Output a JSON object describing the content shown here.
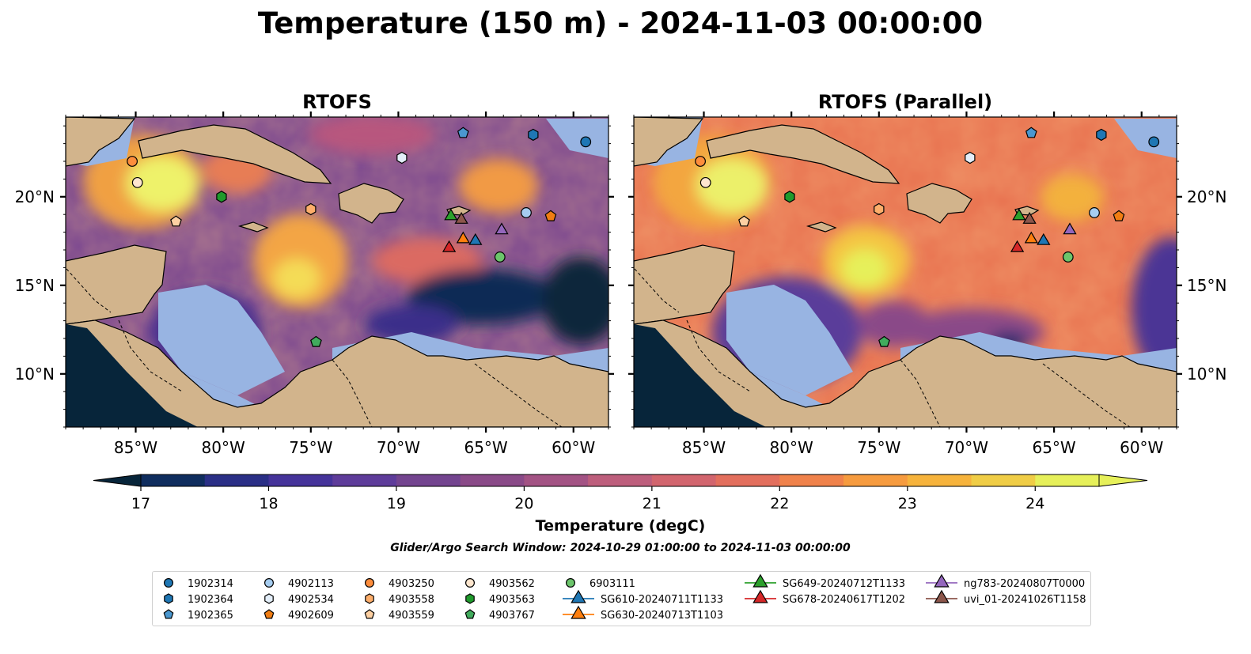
{
  "title": "Temperature (150 m) - 2024-11-03 00:00:00",
  "panels": [
    {
      "title": "RTOFS",
      "variant": "rtofs"
    },
    {
      "title": "RTOFS (Parallel)",
      "variant": "parallel"
    }
  ],
  "map": {
    "lon_range": [
      -89,
      -58
    ],
    "lat_range": [
      7,
      24.5
    ],
    "lon_ticks": [
      {
        "value": -85,
        "label": "85°W"
      },
      {
        "value": -80,
        "label": "80°W"
      },
      {
        "value": -75,
        "label": "75°W"
      },
      {
        "value": -70,
        "label": "70°W"
      },
      {
        "value": -65,
        "label": "65°W"
      },
      {
        "value": -60,
        "label": "60°W"
      }
    ],
    "lat_ticks": [
      {
        "value": 10,
        "label": "10°N"
      },
      {
        "value": 15,
        "label": "15°N"
      },
      {
        "value": 20,
        "label": "20°N"
      }
    ],
    "land_color": "#d2b48c",
    "shelf_color": "#98b4e2",
    "deep_color": "#07253a"
  },
  "colorbar": {
    "label": "Temperature (degC)",
    "min": 17,
    "max": 24.5,
    "step": 0.5,
    "tick_values": [
      17,
      18,
      19,
      20,
      21,
      22,
      23,
      24
    ],
    "tick_labels": [
      "17",
      "18",
      "19",
      "20",
      "21",
      "22",
      "23",
      "24"
    ],
    "colors": [
      "#07253a",
      "#0f2d5e",
      "#2a2f86",
      "#45339a",
      "#5e3c9a",
      "#73448f",
      "#8a4a88",
      "#a35384",
      "#bd5e7c",
      "#d2656e",
      "#e36f5d",
      "#f0824b",
      "#f69b3f",
      "#f6b33c",
      "#f0cd46",
      "#e6f05a"
    ]
  },
  "subtitle": "Glider/Argo Search Window: 2024-10-29 01:00:00 to 2024-11-03 00:00:00",
  "observations": [
    {
      "id": "1902314",
      "marker": "circle",
      "color": "#1f77b4",
      "lon": -59.3,
      "lat": 23.1
    },
    {
      "id": "1902364",
      "marker": "hexagon",
      "color": "#1f77b4",
      "lon": -62.3,
      "lat": 23.5
    },
    {
      "id": "1902365",
      "marker": "pentagon",
      "color": "#4a97cf",
      "lon": -66.3,
      "lat": 23.6
    },
    {
      "id": "4902113",
      "marker": "circle",
      "color": "#a6cdf0",
      "lon": -62.7,
      "lat": 19.1
    },
    {
      "id": "4902534",
      "marker": "hexagon",
      "color": "#e3eef9",
      "lon": -69.8,
      "lat": 22.2
    },
    {
      "id": "4902609",
      "marker": "pentagon",
      "color": "#f07d13",
      "lon": -61.3,
      "lat": 18.9
    },
    {
      "id": "4903250",
      "marker": "circle",
      "color": "#fd8d3c",
      "lon": -85.2,
      "lat": 22.0
    },
    {
      "id": "4903558",
      "marker": "hexagon",
      "color": "#fdae6b",
      "lon": -75.0,
      "lat": 19.3
    },
    {
      "id": "4903559",
      "marker": "pentagon",
      "color": "#fdd0a2",
      "lon": -82.7,
      "lat": 18.6
    },
    {
      "id": "4903562",
      "marker": "circle",
      "color": "#fee6ce",
      "lon": -84.9,
      "lat": 20.8
    },
    {
      "id": "4903563",
      "marker": "hexagon",
      "color": "#1f9a2c",
      "lon": -80.1,
      "lat": 20.0
    },
    {
      "id": "4903767",
      "marker": "pentagon",
      "color": "#41ab5d",
      "lon": -74.7,
      "lat": 11.8
    },
    {
      "id": "6903111",
      "marker": "circle",
      "color": "#6cc56b",
      "lon": -64.2,
      "lat": 16.6
    },
    {
      "id": "SG610-20240711T1133",
      "marker": "triangle",
      "color": "#1f77b4",
      "lon": -65.6,
      "lat": 17.5
    },
    {
      "id": "SG630-20240713T1103",
      "marker": "triangle",
      "color": "#ff7f0e",
      "lon": -66.3,
      "lat": 17.6
    },
    {
      "id": "SG649-20240712T1133",
      "marker": "triangle",
      "color": "#2ca02c",
      "lon": -67.0,
      "lat": 18.9
    },
    {
      "id": "SG678-20240617T1202",
      "marker": "triangle",
      "color": "#d62728",
      "lon": -67.1,
      "lat": 17.1
    },
    {
      "id": "ng783-20240807T0000",
      "marker": "triangle",
      "color": "#9467bd",
      "lon": -64.1,
      "lat": 18.1
    },
    {
      "id": "uvi_01-20241026T1158",
      "marker": "triangle",
      "color": "#8c564b",
      "lon": -66.4,
      "lat": 18.7
    }
  ]
}
